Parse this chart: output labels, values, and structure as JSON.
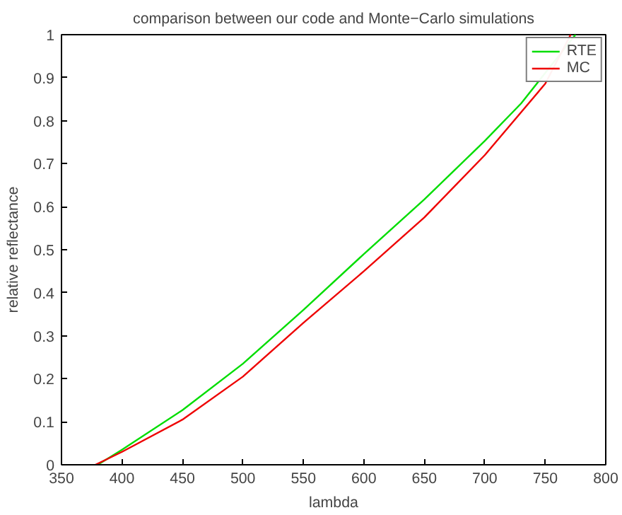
{
  "chart_data": {
    "type": "line",
    "title": "comparison between our code and Monte−Carlo simulations",
    "xlabel": "lambda",
    "ylabel": "relative reflectance",
    "xlim": [
      350,
      800
    ],
    "ylim": [
      0,
      1
    ],
    "xticks": [
      350,
      400,
      450,
      500,
      550,
      600,
      650,
      700,
      750,
      800
    ],
    "yticks": [
      0,
      0.1,
      0.2,
      0.3,
      0.4,
      0.5,
      0.6,
      0.7,
      0.8,
      0.9,
      1
    ],
    "grid": false,
    "legend": "top right",
    "line_style": "solid",
    "marker": "none",
    "series": [
      {
        "name": "RTE",
        "color": "#00dd00",
        "x": [
          380,
          400,
          450,
          500,
          550,
          600,
          650,
          700,
          730,
          775
        ],
        "values": [
          0,
          0.035,
          0.127,
          0.235,
          0.36,
          0.49,
          0.617,
          0.753,
          0.84,
          1
        ]
      },
      {
        "name": "MC",
        "color": "#ee0000",
        "x": [
          378,
          400,
          450,
          500,
          550,
          600,
          650,
          700,
          750,
          771
        ],
        "values": [
          0,
          0.03,
          0.105,
          0.205,
          0.33,
          0.45,
          0.575,
          0.72,
          0.886,
          1
        ]
      }
    ]
  }
}
